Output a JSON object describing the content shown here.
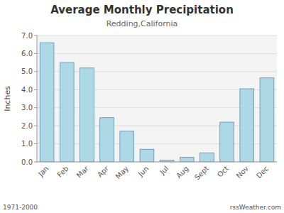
{
  "chart_data": {
    "type": "bar",
    "title": "Average Monthly Precipitation",
    "subtitle": "Redding,California",
    "ylabel": "Inches",
    "categories": [
      "Jan",
      "Feb",
      "Mar",
      "Apr",
      "May",
      "Jun",
      "Jul",
      "Aug",
      "Sept",
      "Oct",
      "Nov",
      "Dec"
    ],
    "values": [
      6.6,
      5.5,
      5.2,
      2.45,
      1.7,
      0.7,
      0.1,
      0.25,
      0.5,
      2.2,
      4.05,
      4.65
    ],
    "color": "#add8e6",
    "ylim": [
      0,
      7.0
    ],
    "yticks": [
      {
        "value": 0.0,
        "label": "0.0"
      },
      {
        "value": 1.0,
        "label": "1.0"
      },
      {
        "value": 2.0,
        "label": "2.0"
      },
      {
        "value": 3.0,
        "label": "3.0"
      },
      {
        "value": 4.0,
        "label": "4.0"
      },
      {
        "value": 5.0,
        "label": "5.0"
      },
      {
        "value": 6.0,
        "label": "6.0"
      },
      {
        "value": 7.0,
        "label": "7.0"
      }
    ],
    "grid": true,
    "annotations": [
      "1971-2000",
      "rssWeather.com"
    ]
  }
}
